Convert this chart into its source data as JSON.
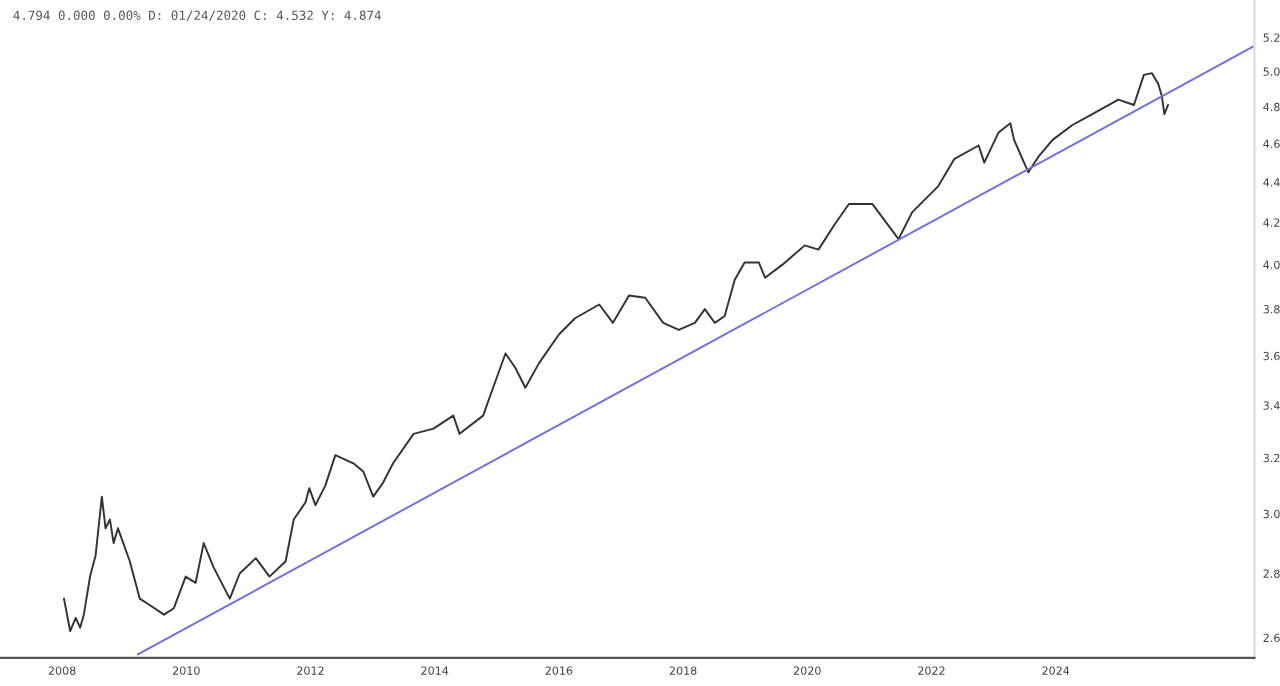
{
  "chart_data": {
    "type": "line",
    "log": "y",
    "grid": false,
    "marker": "none",
    "line_style": "solid",
    "annotations": [
      "4.794 0.000 0.00% D: 01/24/2020 C: 4.532 Y: 4.874"
    ],
    "xlim": [
      2007.0,
      2027.2
    ],
    "xticks": [
      2008,
      2010,
      2012,
      2014,
      2016,
      2018,
      2020,
      2022,
      2024
    ],
    "ylim": [
      2.54,
      5.43
    ],
    "yticks": [
      2.6,
      2.8,
      {
        "value": 3,
        "label": "3.0"
      },
      3.2,
      3.4,
      3.6,
      3.8,
      {
        "value": 4,
        "label": "4.0"
      },
      4.2,
      4.4,
      4.6,
      4.8,
      {
        "value": 5,
        "label": "5.0"
      },
      5.2
    ],
    "series": [
      {
        "color": "#333333",
        "x": [
          2008.03,
          2008.13,
          2008.22,
          2008.29,
          2008.35,
          2008.45,
          2008.54,
          2008.64,
          2008.7,
          2008.77,
          2008.83,
          2008.9,
          2009.09,
          2009.25,
          2009.41,
          2009.64,
          2009.8,
          2009.99,
          2010.15,
          2010.28,
          2010.44,
          2010.7,
          2010.86,
          2011.12,
          2011.34,
          2011.6,
          2011.73,
          2011.92,
          2011.98,
          2012.08,
          2012.24,
          2012.4,
          2012.69,
          2012.85,
          2013.01,
          2013.17,
          2013.33,
          2013.66,
          2013.98,
          2014.3,
          2014.4,
          2014.78,
          2014.94,
          2015.14,
          2015.3,
          2015.46,
          2015.68,
          2016.0,
          2016.26,
          2016.65,
          2016.87,
          2017.13,
          2017.39,
          2017.68,
          2017.93,
          2018.19,
          2018.35,
          2018.51,
          2018.67,
          2018.83,
          2018.99,
          2019.22,
          2019.32,
          2019.6,
          2019.96,
          2020.18,
          2020.44,
          2020.67,
          2021.05,
          2021.47,
          2021.69,
          2022.11,
          2022.37,
          2022.76,
          2022.85,
          2023.08,
          2023.27,
          2023.33,
          2023.56,
          2023.72,
          2023.95,
          2024.27,
          2024.59,
          2025.01,
          2025.26,
          2025.42,
          2025.55,
          2025.65,
          2025.71,
          2025.75,
          2025.81
        ],
        "values": [
          2.72,
          2.62,
          2.66,
          2.63,
          2.67,
          2.79,
          2.86,
          3.06,
          2.95,
          2.98,
          2.9,
          2.95,
          2.84,
          2.72,
          2.7,
          2.67,
          2.69,
          2.79,
          2.77,
          2.9,
          2.82,
          2.72,
          2.8,
          2.85,
          2.79,
          2.84,
          2.98,
          3.04,
          3.09,
          3.03,
          3.1,
          3.21,
          3.18,
          3.15,
          3.06,
          3.11,
          3.18,
          3.29,
          3.31,
          3.36,
          3.29,
          3.36,
          3.47,
          3.61,
          3.55,
          3.47,
          3.57,
          3.69,
          3.76,
          3.82,
          3.74,
          3.86,
          3.85,
          3.74,
          3.71,
          3.74,
          3.8,
          3.74,
          3.77,
          3.93,
          4.01,
          4.01,
          3.94,
          4.0,
          4.09,
          4.07,
          4.19,
          4.29,
          4.29,
          4.12,
          4.25,
          4.38,
          4.52,
          4.59,
          4.5,
          4.66,
          4.71,
          4.62,
          4.45,
          4.53,
          4.62,
          4.7,
          4.76,
          4.84,
          4.81,
          4.98,
          4.99,
          4.93,
          4.86,
          4.76,
          4.81
        ]
      },
      {
        "color": "#7070e0",
        "x": [
          2009.22,
          2027.2
        ],
        "values": [
          2.55,
          5.15
        ]
      }
    ]
  }
}
